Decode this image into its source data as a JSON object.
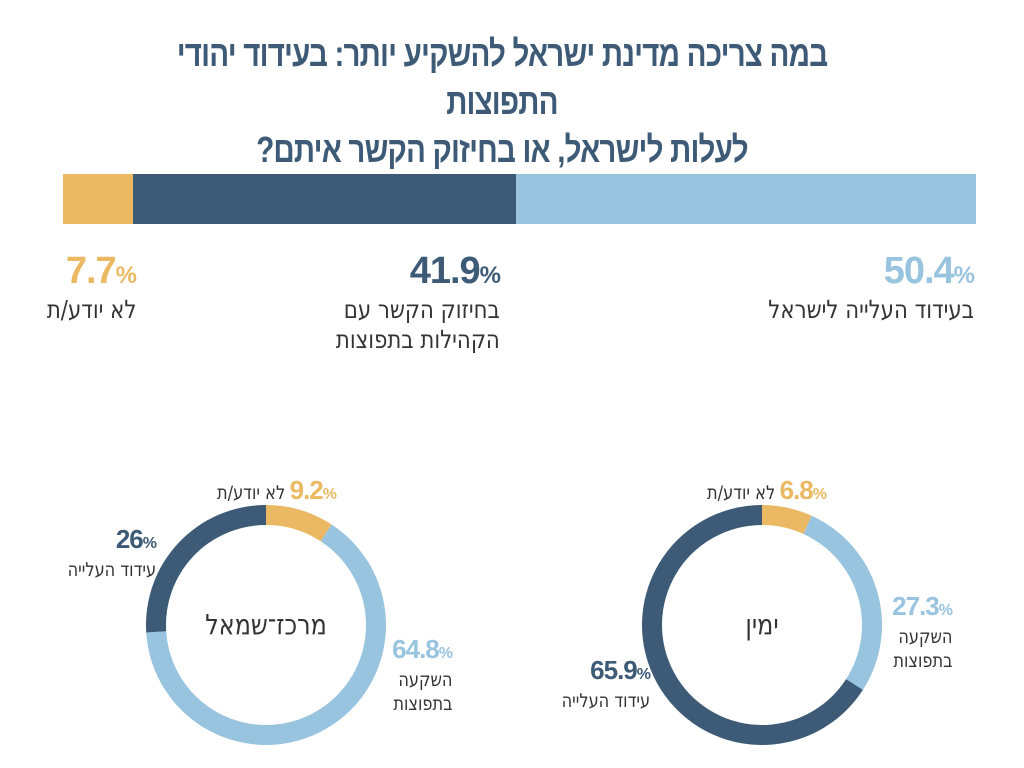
{
  "title": {
    "line1": "במה צריכה מדינת ישראל להשקיע יותר: בעידוד יהודי התפוצות",
    "line2": "לעלות לישראל, או בחיזוק הקשר איתם?"
  },
  "colors": {
    "aliyah": "#98c4df",
    "diaspora_dark": "#3d5b76",
    "dont_know": "#ebb964"
  },
  "chart_data": [
    {
      "type": "bar",
      "stacked": true,
      "orientation": "horizontal",
      "title": "במה צריכה מדינת ישראל להשקיע יותר: בעידוד יהודי התפוצות לעלות לישראל, או בחיזוק הקשר איתם?",
      "categories": [
        "לא יודע/ת",
        "בחיזוק הקשר עם הקהילות בתפוצות",
        "בעידוד העלייה לישראל"
      ],
      "values": [
        7.7,
        41.9,
        50.4
      ],
      "value_labels": [
        "7.7",
        "41.9",
        "50.4"
      ],
      "unit": "%",
      "label_lines": [
        [
          "לא יודע/ת"
        ],
        [
          "בחיזוק הקשר עם",
          "הקהילות בתפוצות"
        ],
        [
          "בעידוד העלייה לישראל"
        ]
      ],
      "series_colors": [
        "#ebb964",
        "#3d5b76",
        "#98c4df"
      ]
    },
    {
      "type": "pie",
      "donut": true,
      "title": "מרכז־שמאל",
      "categories": [
        "לא יודע/ת",
        "השקעה בתפוצות",
        "עידוד העלייה"
      ],
      "values": [
        9.2,
        64.8,
        26
      ],
      "value_labels": [
        "9.2",
        "64.8",
        "26"
      ],
      "unit": "%",
      "label_lines": [
        [
          "לא יודע/ת"
        ],
        [
          "השקעה",
          "בתפוצות"
        ],
        [
          "עידוד העלייה"
        ]
      ],
      "series_colors": [
        "#ebb964",
        "#98c4df",
        "#3d5b76"
      ],
      "start": "top",
      "direction": "clockwise"
    },
    {
      "type": "pie",
      "donut": true,
      "title": "ימין",
      "categories": [
        "לא יודע/ת",
        "השקעה בתפוצות",
        "עידוד העלייה"
      ],
      "values": [
        6.8,
        27.3,
        65.9
      ],
      "value_labels": [
        "6.8",
        "27.3",
        "65.9"
      ],
      "unit": "%",
      "label_lines": [
        [
          "לא יודע/ת"
        ],
        [
          "השקעה",
          "בתפוצות"
        ],
        [
          "עידוד העלייה"
        ]
      ],
      "series_colors": [
        "#ebb964",
        "#98c4df",
        "#3d5b76"
      ],
      "start": "top",
      "direction": "clockwise"
    }
  ]
}
